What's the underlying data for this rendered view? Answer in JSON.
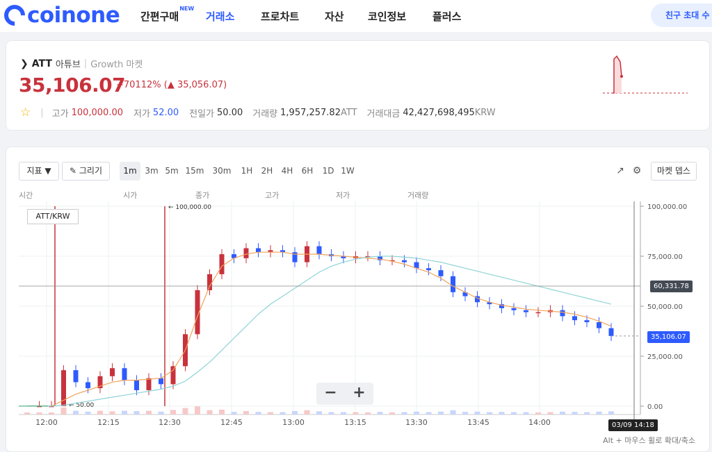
{
  "brand": {
    "name": "coinone",
    "color": "#2e5bff"
  },
  "nav": {
    "items": [
      {
        "label": "간편구매",
        "badge": "NEW"
      },
      {
        "label": "거래소",
        "active": true
      },
      {
        "label": "프로차트"
      },
      {
        "label": "자산"
      },
      {
        "label": "코인정보"
      },
      {
        "label": "플러스"
      }
    ],
    "invite_label": "친구 초대 수"
  },
  "ticker": {
    "symbol": "ATT",
    "name": "아튜브",
    "separator": "|",
    "market": "Growth 마켓",
    "price": "35,106.07",
    "change_rate": "+70112%",
    "change_amount": "(▲ 35,056.07)",
    "high_label": "고가",
    "high": "100,000.00",
    "low_label": "저가",
    "low": "52.00",
    "prev_label": "전일가",
    "prev": "50.00",
    "volume_label": "거래량",
    "volume": "1,957,257.82",
    "volume_unit": "ATT",
    "value_label": "거래대금",
    "value": "42,427,698,495",
    "value_unit": "KRW",
    "up_color": "#c8323c",
    "down_color": "#2e5bff"
  },
  "toolbar": {
    "indicator_label": "지표 ▼",
    "draw_label": "그리기",
    "timeframes": [
      "1m",
      "3m",
      "5m",
      "15m",
      "30m",
      "1H",
      "2H",
      "4H",
      "6H",
      "1D",
      "1W"
    ],
    "active_timeframe": "1m",
    "market_depth_label": "마켓 뎁스"
  },
  "ohlc_headers": [
    "시간",
    "시가",
    "종가",
    "고가",
    "저가",
    "거래량"
  ],
  "chart": {
    "pair_label": "ATT/KRW",
    "max_label": "← 100,000.00",
    "min_label": "← 50.00",
    "crosshair_price": "60,331.78",
    "last_price": "35,106.07",
    "crosshair_time": "03/09 14:18",
    "hint": "Alt + 마우스 휠로 확대/축소",
    "zoom_out": "−",
    "zoom_in": "+"
  },
  "chart_data": {
    "type": "candlestick",
    "x_ticks": [
      "12:00",
      "12:15",
      "12:30",
      "12:45",
      "13:00",
      "13:15",
      "13:30",
      "13:45",
      "14:00"
    ],
    "y_ticks": [
      "100,000.00",
      "75,000.00",
      "50,000.00",
      "25,000.00",
      "0.00"
    ],
    "ylim": [
      0,
      100000
    ],
    "series": [
      {
        "name": "price",
        "values": [
          50,
          50,
          50,
          18000,
          12000,
          9000,
          15000,
          19000,
          13000,
          8000,
          14000,
          11000,
          20000,
          36000,
          58000,
          66000,
          76000,
          74000,
          79000,
          77000,
          78000,
          77000,
          72000,
          80000,
          76000,
          75000,
          74000,
          75000,
          75000,
          73000,
          73000,
          72000,
          69000,
          68000,
          65000,
          57000,
          55000,
          52000,
          51000,
          49000,
          48000,
          47000,
          47000,
          48000,
          45000,
          43000,
          42000,
          39000,
          35106
        ]
      },
      {
        "name": "ma-short",
        "values": [
          50,
          50,
          50,
          3000,
          6000,
          8000,
          10000,
          12000,
          13000,
          13000,
          13500,
          14000,
          18000,
          28000,
          45000,
          60000,
          70000,
          74000,
          76000,
          77000,
          77000,
          77000,
          76000,
          76000,
          76000,
          75500,
          75000,
          74500,
          74000,
          73500,
          72500,
          71000,
          69000,
          67000,
          64000,
          60000,
          57000,
          54000,
          52000,
          50500,
          49500,
          48500,
          48000,
          47500,
          47000,
          46000,
          44500,
          42500,
          40000
        ]
      },
      {
        "name": "ma-long",
        "values": [
          50,
          50,
          50,
          500,
          1500,
          2500,
          3500,
          4500,
          5500,
          6500,
          7500,
          8500,
          10000,
          12500,
          17000,
          22000,
          28000,
          34000,
          40000,
          46000,
          51000,
          55000,
          59000,
          63000,
          67000,
          70000,
          72000,
          73500,
          74500,
          75000,
          75000,
          74500,
          74000,
          73000,
          72000,
          70500,
          69000,
          67500,
          66000,
          64500,
          63000,
          61500,
          60000,
          58500,
          57000,
          55500,
          54000,
          52500,
          51000
        ]
      }
    ]
  }
}
